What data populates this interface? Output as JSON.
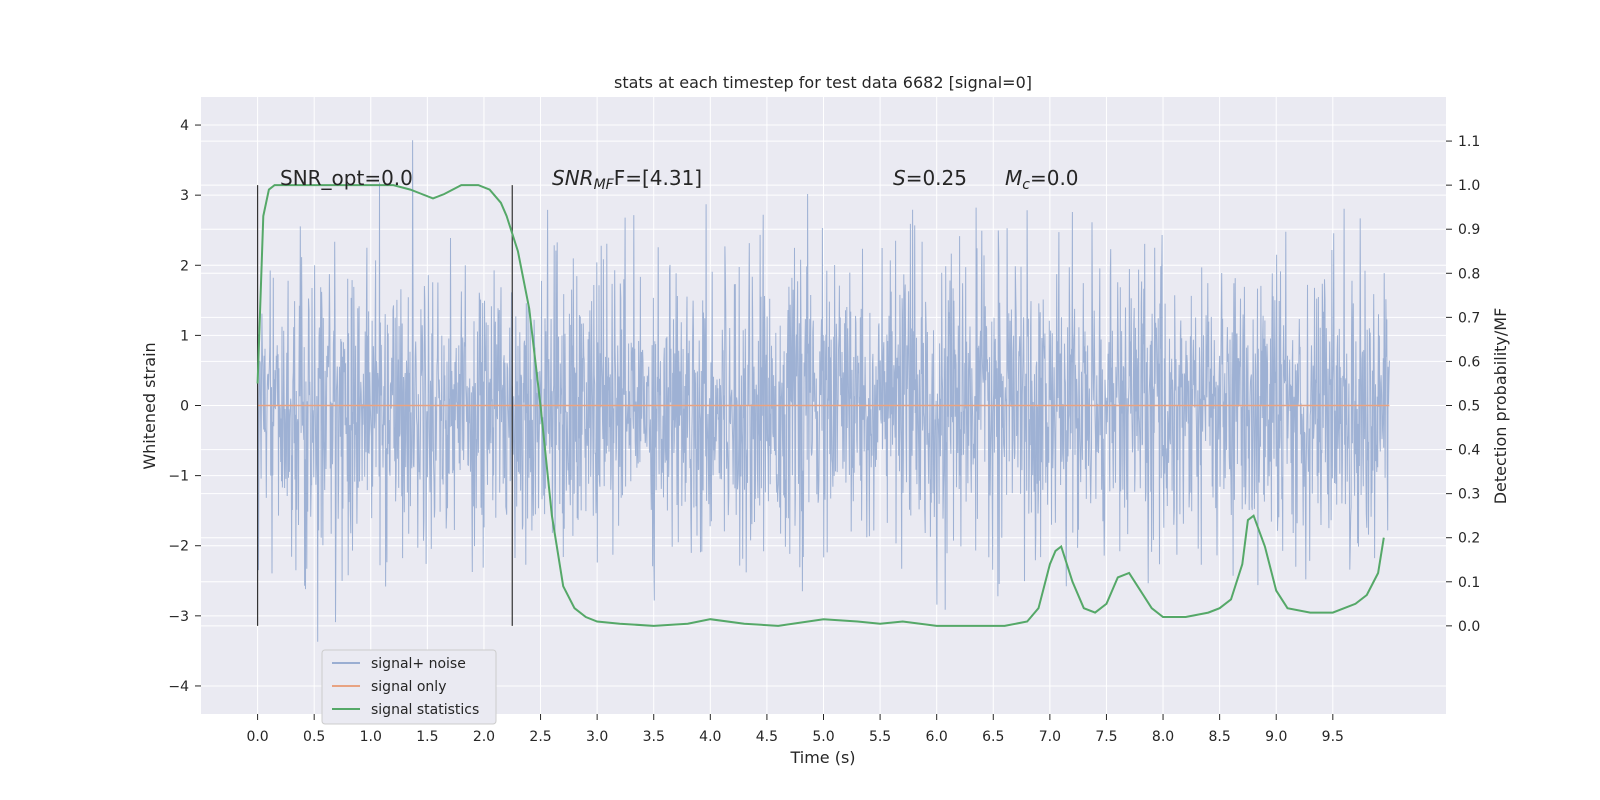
{
  "chart_data": {
    "type": "line",
    "title": "stats at each timestep for test data 6682 [signal=0]",
    "xlabel": "Time (s)",
    "ylabel_left": "Whitened strain",
    "ylabel_right": "Detection probability/MF",
    "xlim": [
      -0.5,
      10.5
    ],
    "ylim_left": [
      -4.4,
      4.4
    ],
    "ylim_right": [
      -0.2,
      1.2
    ],
    "x_ticks": [
      0.0,
      0.5,
      1.0,
      1.5,
      2.0,
      2.5,
      3.0,
      3.5,
      4.0,
      4.5,
      5.0,
      5.5,
      6.0,
      6.5,
      7.0,
      7.5,
      8.0,
      8.5,
      9.0,
      9.5
    ],
    "x_tick_labels": [
      "0.0",
      "0.5",
      "1.0",
      "1.5",
      "2.0",
      "2.5",
      "3.0",
      "3.5",
      "4.0",
      "4.5",
      "5.0",
      "5.5",
      "6.0",
      "6.5",
      "7.0",
      "7.5",
      "8.0",
      "8.5",
      "9.0",
      "9.5"
    ],
    "y_left_ticks": [
      -4,
      -3,
      -2,
      -1,
      0,
      1,
      2,
      3,
      4
    ],
    "y_left_tick_labels": [
      "−4",
      "−3",
      "−2",
      "−1",
      "0",
      "1",
      "2",
      "3",
      "4"
    ],
    "y_right_ticks": [
      0.0,
      0.1,
      0.2,
      0.3,
      0.4,
      0.5,
      0.6,
      0.7,
      0.8,
      0.9,
      1.0,
      1.1
    ],
    "y_right_tick_labels": [
      "0.0",
      "0.1",
      "0.2",
      "0.3",
      "0.4",
      "0.5",
      "0.6",
      "0.7",
      "0.8",
      "0.9",
      "1.0",
      "1.1"
    ],
    "grid": true,
    "legend_position": "lower-left",
    "annotations": {
      "snr_opt": "SNR_opt=0.0",
      "snr_mf_prefix": "SNR",
      "snr_mf_sub": "MF",
      "snr_mf_suffix": "F=[4.31]",
      "s_sym": "S",
      "s_val": "=0.25",
      "mc_sym": "M",
      "mc_sub": "c",
      "mc_val": "=0.0"
    },
    "vertical_markers": [
      0.0,
      2.25
    ],
    "series": [
      {
        "name": "signal+ noise",
        "color": "#9aaed2",
        "axis": "left",
        "x_range": [
          0.0,
          10.0
        ],
        "approx_std": 1.0,
        "approx_range": [
          -4.0,
          4.05
        ]
      },
      {
        "name": "signal only",
        "color": "#e8a382",
        "axis": "left",
        "x": [
          0.0,
          10.0
        ],
        "y": [
          0.0,
          0.0
        ]
      },
      {
        "name": "signal statistics",
        "color": "#55a868",
        "axis": "right",
        "x": [
          0.0,
          0.05,
          0.1,
          0.15,
          0.2,
          0.3,
          0.5,
          0.8,
          1.0,
          1.2,
          1.35,
          1.45,
          1.55,
          1.65,
          1.8,
          1.95,
          2.05,
          2.15,
          2.2,
          2.3,
          2.4,
          2.5,
          2.6,
          2.7,
          2.8,
          2.9,
          3.0,
          3.2,
          3.5,
          3.8,
          4.0,
          4.3,
          4.6,
          5.0,
          5.3,
          5.5,
          5.7,
          6.0,
          6.3,
          6.6,
          6.8,
          6.9,
          7.0,
          7.05,
          7.1,
          7.2,
          7.3,
          7.4,
          7.5,
          7.6,
          7.7,
          7.8,
          7.9,
          8.0,
          8.2,
          8.4,
          8.5,
          8.6,
          8.7,
          8.75,
          8.8,
          8.9,
          9.0,
          9.1,
          9.3,
          9.5,
          9.7,
          9.8,
          9.9,
          9.95
        ],
        "y": [
          0.55,
          0.93,
          0.99,
          1.0,
          1.0,
          1.0,
          1.0,
          1.0,
          1.0,
          1.0,
          0.99,
          0.98,
          0.97,
          0.98,
          1.0,
          1.0,
          0.99,
          0.96,
          0.93,
          0.85,
          0.72,
          0.5,
          0.25,
          0.09,
          0.04,
          0.02,
          0.01,
          0.005,
          0.0,
          0.005,
          0.015,
          0.005,
          0.0,
          0.015,
          0.01,
          0.005,
          0.01,
          0.0,
          0.0,
          0.0,
          0.01,
          0.04,
          0.14,
          0.17,
          0.18,
          0.1,
          0.04,
          0.03,
          0.05,
          0.11,
          0.12,
          0.08,
          0.04,
          0.02,
          0.02,
          0.03,
          0.04,
          0.06,
          0.14,
          0.24,
          0.25,
          0.18,
          0.08,
          0.04,
          0.03,
          0.03,
          0.05,
          0.07,
          0.12,
          0.2
        ]
      }
    ]
  }
}
